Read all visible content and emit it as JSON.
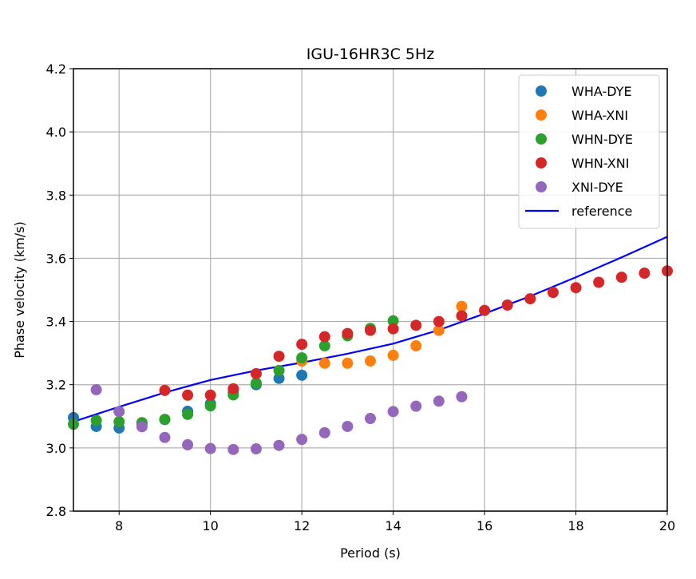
{
  "chart_data": {
    "type": "scatter",
    "title": "IGU-16HR3C 5Hz",
    "xlabel": "Period (s)",
    "ylabel": "Phase velocity (km/s)",
    "xlim": [
      7,
      20
    ],
    "ylim": [
      2.8,
      4.2
    ],
    "xticks": [
      "8",
      "10",
      "12",
      "14",
      "16",
      "18",
      "20"
    ],
    "yticks": [
      "2.8",
      "3.0",
      "3.2",
      "3.4",
      "3.6",
      "3.8",
      "4.0",
      "4.2"
    ],
    "grid": true,
    "legend_position": "top-right",
    "series": [
      {
        "name": "WHA-DYE",
        "color": "#1f77b4",
        "x": [
          7,
          7.5,
          8,
          8.5,
          9,
          9.5,
          10,
          10.5,
          11,
          11.5,
          12
        ],
        "y": [
          3.096,
          3.068,
          3.063,
          3.075,
          3.09,
          3.116,
          3.14,
          3.175,
          3.2,
          3.22,
          3.23
        ]
      },
      {
        "name": "WHA-XNI",
        "color": "#ff7f0e",
        "x": [
          12,
          12.5,
          13,
          13.5,
          14,
          14.5,
          15,
          15.5
        ],
        "y": [
          3.275,
          3.268,
          3.268,
          3.275,
          3.293,
          3.323,
          3.372,
          3.448
        ]
      },
      {
        "name": "WHN-DYE",
        "color": "#2ca02c",
        "x": [
          7,
          7.5,
          8,
          8.5,
          9,
          9.5,
          10,
          10.5,
          11,
          11.5,
          12,
          12.5,
          13,
          13.5,
          14
        ],
        "y": [
          3.075,
          3.087,
          3.083,
          3.08,
          3.09,
          3.106,
          3.133,
          3.168,
          3.205,
          3.245,
          3.285,
          3.323,
          3.355,
          3.378,
          3.402
        ]
      },
      {
        "name": "WHN-XNI",
        "color": "#d62728",
        "x": [
          9,
          9.5,
          10,
          10.5,
          11,
          11.5,
          12,
          12.5,
          13,
          13.5,
          14,
          14.5,
          15,
          15.5,
          16,
          16.5,
          17,
          17.5,
          18,
          18.5,
          19,
          19.5,
          20
        ],
        "y": [
          3.182,
          3.167,
          3.167,
          3.187,
          3.235,
          3.29,
          3.328,
          3.352,
          3.362,
          3.372,
          3.377,
          3.388,
          3.4,
          3.418,
          3.435,
          3.452,
          3.472,
          3.492,
          3.507,
          3.524,
          3.54,
          3.553,
          3.56
        ]
      },
      {
        "name": "XNI-DYE",
        "color": "#9467bd",
        "x": [
          7.5,
          8,
          8.5,
          9,
          9.5,
          10,
          10.5,
          11,
          11.5,
          12,
          12.5,
          13,
          13.5,
          14,
          14.5,
          15,
          15.5
        ],
        "y": [
          3.184,
          3.115,
          3.067,
          3.033,
          3.01,
          2.998,
          2.995,
          2.997,
          3.008,
          3.027,
          3.048,
          3.068,
          3.093,
          3.115,
          3.132,
          3.148,
          3.162
        ]
      }
    ],
    "reference": {
      "name": "reference",
      "color": "#0000ff",
      "type": "line",
      "x": [
        7,
        8,
        9,
        10,
        11,
        12,
        13,
        14,
        15,
        16,
        17,
        18,
        19,
        20
      ],
      "y": [
        3.083,
        3.13,
        3.175,
        3.215,
        3.245,
        3.27,
        3.298,
        3.33,
        3.373,
        3.425,
        3.48,
        3.54,
        3.603,
        3.668
      ]
    }
  }
}
